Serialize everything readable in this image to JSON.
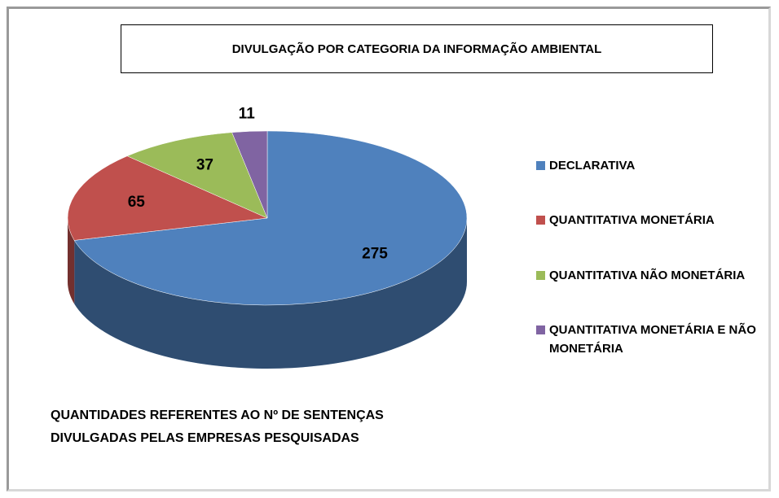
{
  "chart_data": {
    "type": "pie3d",
    "title": "DIVULGAÇÃO POR CATEGORIA DA INFORMAÇÃO AMBIENTAL",
    "categories": [
      "DECLARATIVA",
      "QUANTITATIVA MONETÁRIA",
      "QUANTITATIVA NÃO MONETÁRIA",
      "QUANTITATIVA MONETÁRIA E NÃO MONETÁRIA"
    ],
    "values": [
      275,
      65,
      37,
      11
    ],
    "colors": [
      "#4f81bd",
      "#c0504d",
      "#9bbb59",
      "#8064a2"
    ],
    "legend": "right",
    "annotation": "QUANTIDADES REFERENTES AO Nº DE SENTENÇAS DIVULGADAS PELAS EMPRESAS PESQUISADAS"
  }
}
